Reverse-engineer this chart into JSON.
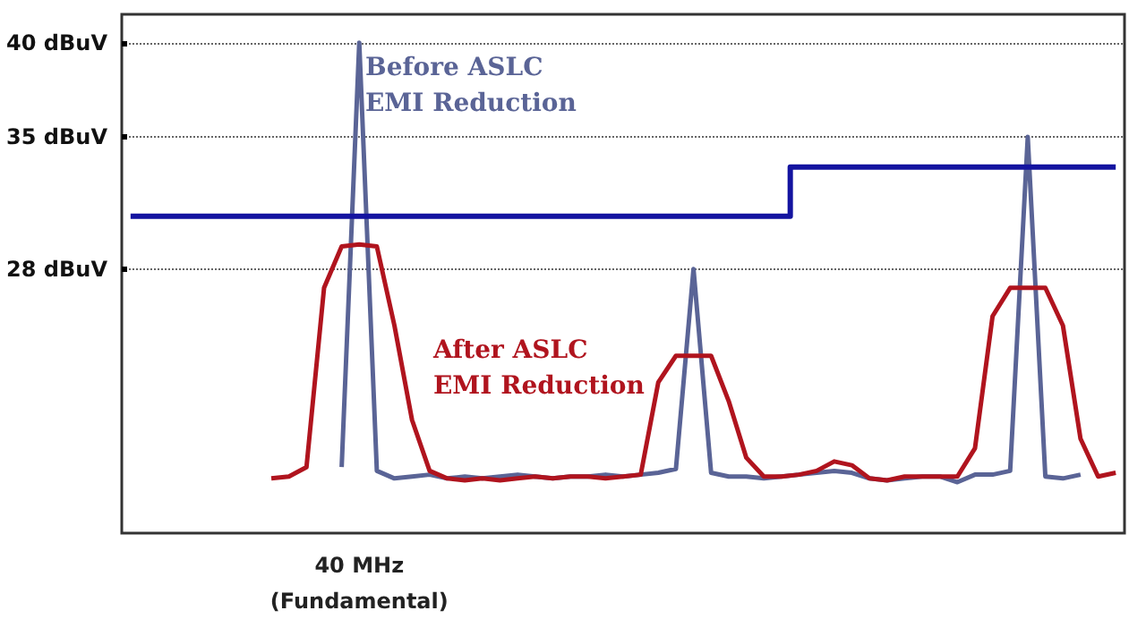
{
  "chart_data": {
    "type": "line",
    "categories": [
      null,
      null,
      null,
      null,
      null,
      null,
      null,
      null,
      null,
      null,
      null,
      null,
      null,
      "40 MHz\n(Fundamental)",
      null,
      null,
      null,
      null,
      null,
      null,
      null,
      null,
      null,
      null,
      null,
      null,
      null,
      null,
      null,
      null,
      null,
      null,
      null,
      null,
      null,
      null,
      null,
      null,
      null,
      null,
      null,
      null,
      null,
      null,
      null,
      null,
      null,
      null,
      null,
      null,
      null,
      null,
      null,
      null,
      null,
      null,
      null
    ],
    "series": [
      {
        "name": "Before ASLC EMI Reduction",
        "color": "#5a6496",
        "values": [
          null,
          null,
          null,
          null,
          null,
          null,
          null,
          null,
          null,
          null,
          null,
          null,
          17.5,
          40,
          17.3,
          16.9,
          17.0,
          17.1,
          16.9,
          17.0,
          16.9,
          17.0,
          17.1,
          17.0,
          16.9,
          17.0,
          17.0,
          17.1,
          17.0,
          17.1,
          17.2,
          17.4,
          28,
          17.2,
          17.0,
          17.0,
          16.9,
          17.0,
          17.1,
          17.2,
          17.3,
          17.2,
          16.9,
          16.8,
          16.9,
          17.0,
          17.0,
          16.7,
          17.1,
          17.1,
          17.3,
          35,
          17.0,
          16.9,
          17.1,
          null,
          null
        ]
      },
      {
        "name": "After ASLC EMI Reduction",
        "color": "#b0141e",
        "values": [
          null,
          null,
          null,
          null,
          null,
          null,
          null,
          null,
          16.9,
          17.0,
          17.5,
          27,
          29.2,
          29.3,
          29.2,
          25,
          20,
          17.3,
          16.9,
          16.8,
          16.9,
          16.8,
          16.9,
          17.0,
          16.9,
          17.0,
          17.0,
          16.9,
          17.0,
          17.1,
          22,
          23.4,
          23.4,
          23.4,
          21,
          18,
          17.0,
          17.0,
          17.1,
          17.3,
          17.8,
          17.6,
          16.9,
          16.8,
          17.0,
          17.0,
          17.0,
          17.0,
          18.5,
          25.5,
          27,
          27,
          27,
          25,
          19,
          17,
          17.2
        ]
      },
      {
        "type": "step",
        "color": "#1414a0",
        "values": [
          30.8,
          30.8,
          30.8,
          30.8,
          30.8,
          30.8,
          30.8,
          30.8,
          30.8,
          30.8,
          30.8,
          30.8,
          30.8,
          30.8,
          30.8,
          30.8,
          30.8,
          30.8,
          30.8,
          30.8,
          30.8,
          30.8,
          30.8,
          30.8,
          30.8,
          30.8,
          30.8,
          30.8,
          30.8,
          30.8,
          30.8,
          30.8,
          30.8,
          30.8,
          30.8,
          30.8,
          30.8,
          30.8,
          33.4,
          33.4,
          33.4,
          33.4,
          33.4,
          33.4,
          33.4,
          33.4,
          33.4,
          33.4,
          33.4,
          33.4,
          33.4,
          33.4,
          33.4,
          33.4,
          33.4,
          33.4,
          33.4
        ]
      }
    ],
    "ylim": [
      14,
      41.5
    ],
    "yticks": [
      {
        "value": 28,
        "label": "28 dBuV"
      },
      {
        "value": 35,
        "label": "35 dBuV"
      },
      {
        "value": 40,
        "label": "40 dBuV"
      }
    ],
    "grid": "y",
    "line_style": "solid",
    "marker": "none"
  }
}
